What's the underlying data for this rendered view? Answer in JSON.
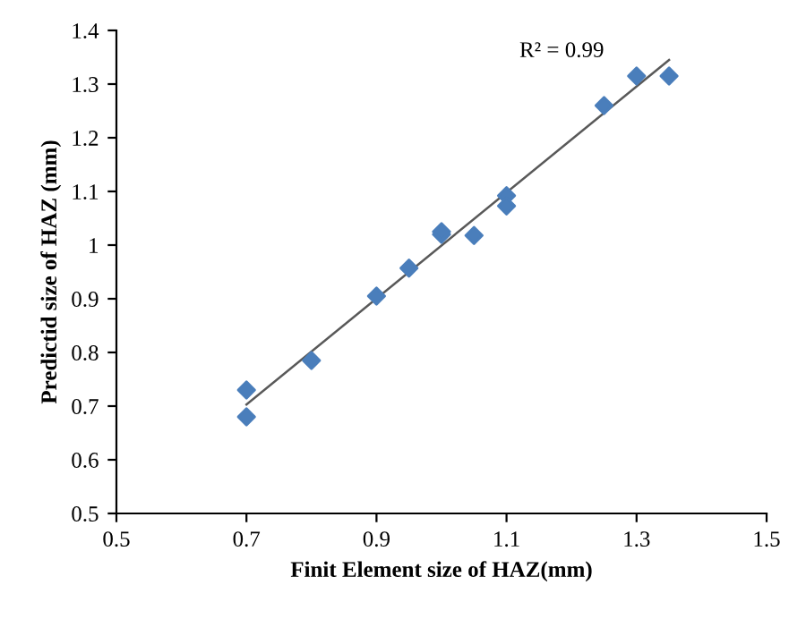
{
  "chart_data": {
    "type": "scatter",
    "xlabel": "Finit Element size of HAZ(mm)",
    "ylabel": "Predictid size of HAZ (mm)",
    "series": [
      {
        "color": "#4a7ebb",
        "marker": "diamond",
        "x": [
          0.7,
          0.7,
          0.8,
          0.9,
          0.95,
          1.0,
          1.0,
          1.05,
          1.1,
          1.1,
          1.25,
          1.3,
          1.35
        ],
        "values": [
          0.73,
          0.68,
          0.785,
          0.905,
          0.957,
          1.02,
          1.025,
          1.018,
          1.092,
          1.073,
          1.26,
          1.315,
          1.315
        ]
      },
      {
        "type": "line",
        "color": "#595959",
        "marker": "none",
        "x": [
          0.7,
          1.35
        ],
        "values": [
          0.703,
          1.345
        ]
      }
    ],
    "annotations": [
      "R² = 0.99"
    ],
    "xlim": [
      0.5,
      1.5
    ],
    "xticks": [
      0.5,
      0.7,
      0.9,
      1.1,
      1.3,
      1.5
    ],
    "ylim": [
      0.5,
      1.4
    ],
    "yticks": [
      0.5,
      0.6,
      0.7,
      0.8,
      0.9,
      1,
      1.1,
      1.2,
      1.3,
      1.4
    ],
    "grid": false,
    "legend": false
  }
}
